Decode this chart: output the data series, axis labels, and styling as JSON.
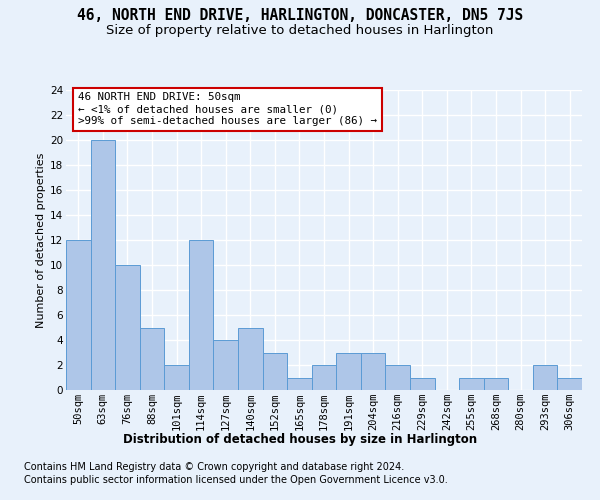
{
  "title": "46, NORTH END DRIVE, HARLINGTON, DONCASTER, DN5 7JS",
  "subtitle": "Size of property relative to detached houses in Harlington",
  "xlabel": "Distribution of detached houses by size in Harlington",
  "ylabel": "Number of detached properties",
  "categories": [
    "50sqm",
    "63sqm",
    "76sqm",
    "88sqm",
    "101sqm",
    "114sqm",
    "127sqm",
    "140sqm",
    "152sqm",
    "165sqm",
    "178sqm",
    "191sqm",
    "204sqm",
    "216sqm",
    "229sqm",
    "242sqm",
    "255sqm",
    "268sqm",
    "280sqm",
    "293sqm",
    "306sqm"
  ],
  "values": [
    12,
    20,
    10,
    5,
    2,
    12,
    4,
    5,
    3,
    1,
    2,
    3,
    3,
    2,
    1,
    0,
    1,
    1,
    0,
    2,
    1
  ],
  "bar_color": "#aec6e8",
  "bar_edge_color": "#5b9bd5",
  "background_color": "#e8f1fb",
  "grid_color": "#ffffff",
  "annotation_line1": "46 NORTH END DRIVE: 50sqm",
  "annotation_line2": "← <1% of detached houses are smaller (0)",
  "annotation_line3": ">99% of semi-detached houses are larger (86) →",
  "annotation_box_facecolor": "#ffffff",
  "annotation_box_edgecolor": "#cc0000",
  "ylim": [
    0,
    24
  ],
  "yticks": [
    0,
    2,
    4,
    6,
    8,
    10,
    12,
    14,
    16,
    18,
    20,
    22,
    24
  ],
  "footnote1": "Contains HM Land Registry data © Crown copyright and database right 2024.",
  "footnote2": "Contains public sector information licensed under the Open Government Licence v3.0.",
  "title_fontsize": 10.5,
  "subtitle_fontsize": 9.5,
  "xlabel_fontsize": 8.5,
  "ylabel_fontsize": 8,
  "tick_fontsize": 7.5,
  "annotation_fontsize": 7.8,
  "footnote_fontsize": 7
}
